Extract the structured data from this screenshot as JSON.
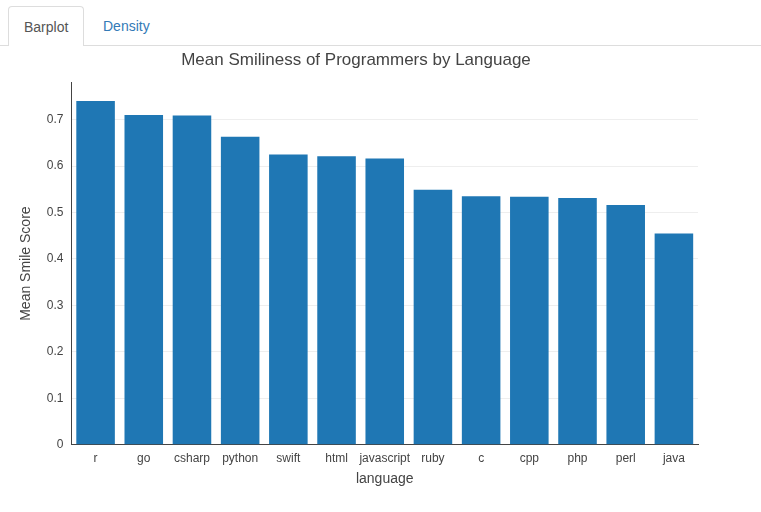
{
  "tabs": [
    "Barplot",
    "Density"
  ],
  "chart_data": {
    "type": "bar",
    "title": "Mean Smiliness of Programmers by Language",
    "x_label": "language",
    "y_label": "Mean Smile Score",
    "categories": [
      "r",
      "go",
      "csharp",
      "python",
      "swift",
      "html",
      "javascript",
      "ruby",
      "c",
      "cpp",
      "php",
      "perl",
      "java"
    ],
    "values": [
      0.74,
      0.71,
      0.709,
      0.663,
      0.625,
      0.621,
      0.616,
      0.549,
      0.535,
      0.534,
      0.531,
      0.516,
      0.455
    ],
    "color": "#1f77b4",
    "ylim": [
      0,
      0.78
    ],
    "yticks": [
      0,
      0.1,
      0.2,
      0.3,
      0.4,
      0.5,
      0.6,
      0.7
    ],
    "grid": true
  }
}
